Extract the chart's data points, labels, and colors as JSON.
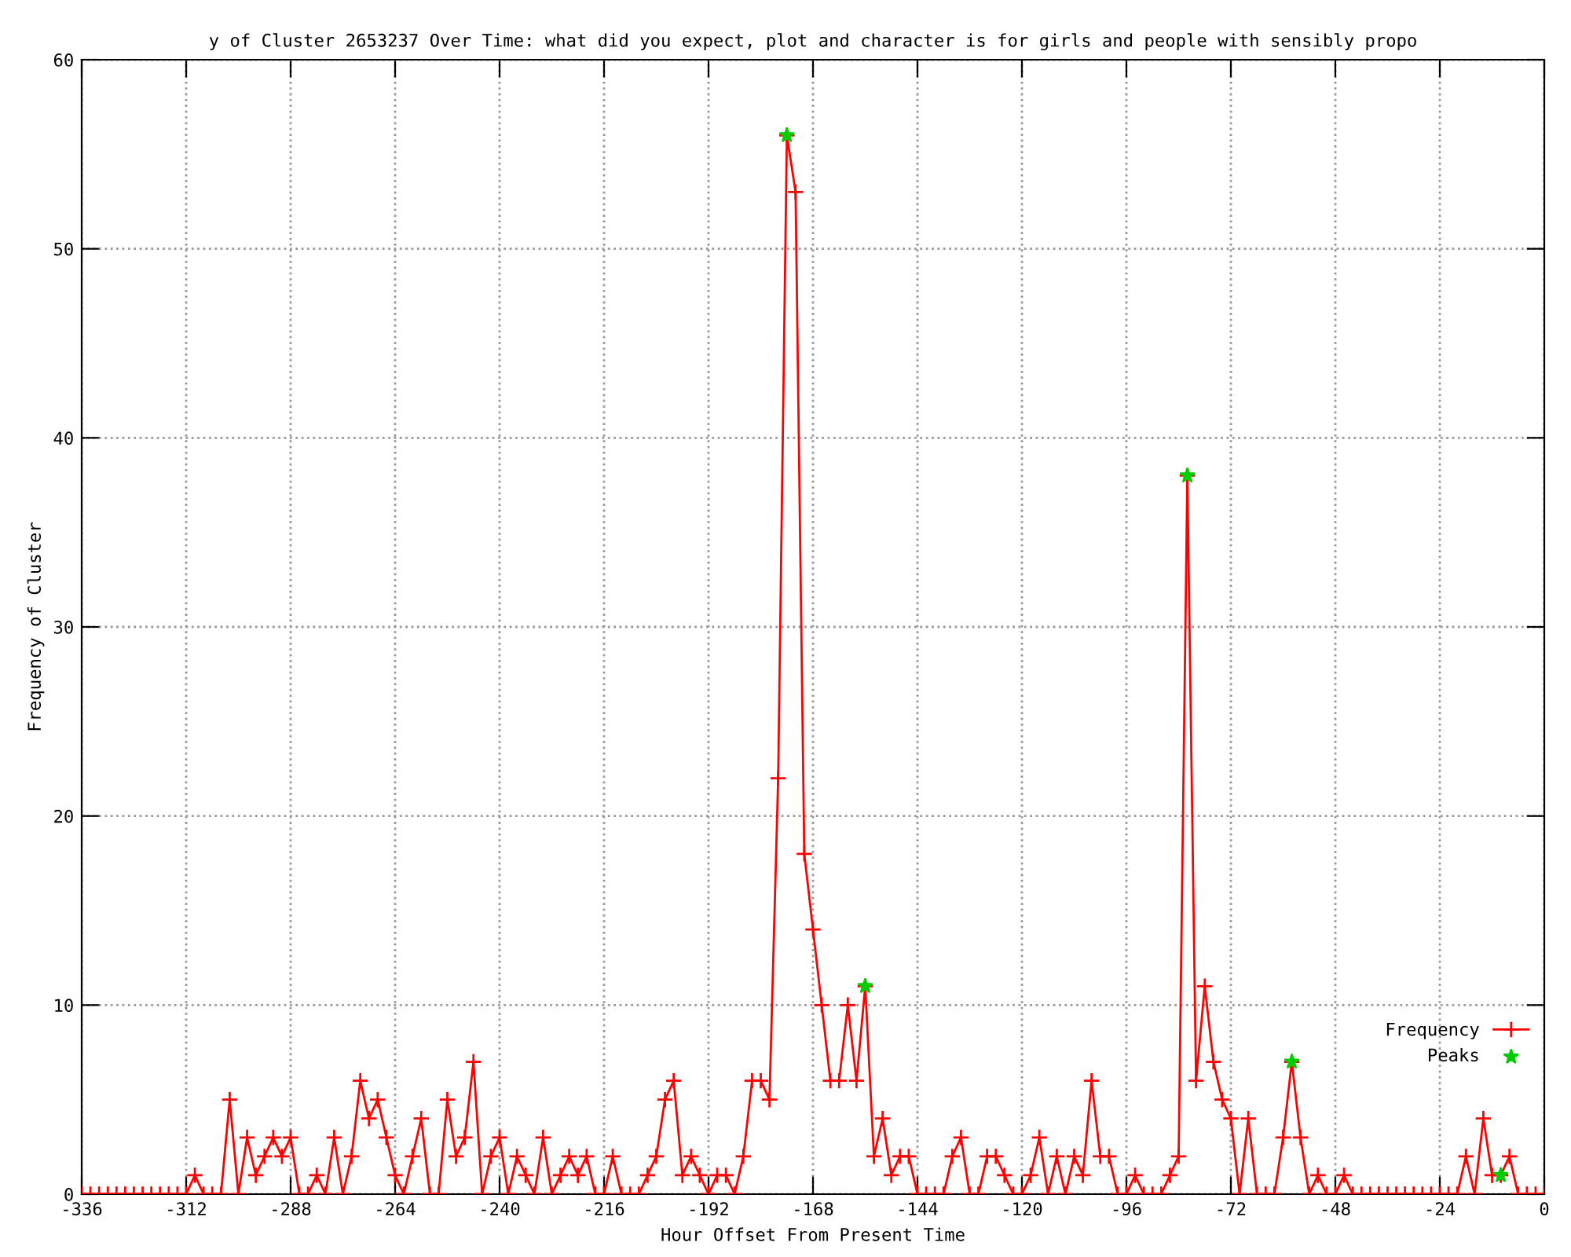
{
  "chart_data": {
    "type": "line",
    "title": "y of Cluster 2653237 Over Time: what did you expect, plot and character is for girls and people with sensibly propo",
    "xlabel": "Hour Offset From Present Time",
    "ylabel": "Frequency of Cluster",
    "x": [
      -336,
      -334,
      -332,
      -330,
      -328,
      -326,
      -324,
      -322,
      -320,
      -318,
      -316,
      -314,
      -312,
      -310,
      -308,
      -306,
      -304,
      -302,
      -300,
      -298,
      -296,
      -294,
      -292,
      -290,
      -288,
      -286,
      -284,
      -282,
      -280,
      -278,
      -276,
      -274,
      -272,
      -270,
      -268,
      -266,
      -264,
      -262,
      -260,
      -258,
      -256,
      -254,
      -252,
      -250,
      -248,
      -246,
      -244,
      -242,
      -240,
      -238,
      -236,
      -234,
      -232,
      -230,
      -228,
      -226,
      -224,
      -222,
      -220,
      -218,
      -216,
      -214,
      -212,
      -210,
      -208,
      -206,
      -204,
      -202,
      -200,
      -198,
      -196,
      -194,
      -192,
      -190,
      -188,
      -186,
      -184,
      -182,
      -180,
      -178,
      -176,
      -174,
      -172,
      -170,
      -168,
      -166,
      -164,
      -162,
      -160,
      -158,
      -156,
      -154,
      -152,
      -150,
      -148,
      -146,
      -144,
      -142,
      -140,
      -138,
      -136,
      -134,
      -132,
      -130,
      -128,
      -126,
      -124,
      -122,
      -120,
      -118,
      -116,
      -114,
      -112,
      -110,
      -108,
      -106,
      -104,
      -102,
      -100,
      -98,
      -96,
      -94,
      -92,
      -90,
      -88,
      -86,
      -84,
      -82,
      -80,
      -78,
      -76,
      -74,
      -72,
      -70,
      -68,
      -66,
      -64,
      -62,
      -60,
      -58,
      -56,
      -54,
      -52,
      -50,
      -48,
      -46,
      -44,
      -42,
      -40,
      -38,
      -36,
      -34,
      -32,
      -30,
      -28,
      -26,
      -24,
      -22,
      -20,
      -18,
      -16,
      -14,
      -12,
      -10,
      -8,
      -6,
      -4,
      -2,
      0
    ],
    "series": [
      {
        "name": "Frequency",
        "color": "#ff0000",
        "marker": "cross",
        "values": [
          0,
          0,
          0,
          0,
          0,
          0,
          0,
          0,
          0,
          0,
          0,
          0,
          0,
          1,
          0,
          0,
          0,
          5,
          0,
          3,
          1,
          2,
          3,
          2,
          3,
          0,
          0,
          1,
          0,
          3,
          0,
          2,
          6,
          4,
          5,
          3,
          1,
          0,
          2,
          4,
          0,
          0,
          5,
          2,
          3,
          7,
          0,
          2,
          3,
          0,
          2,
          1,
          0,
          3,
          0,
          1,
          2,
          1,
          2,
          0,
          0,
          2,
          0,
          0,
          0,
          1,
          2,
          5,
          6,
          1,
          2,
          1,
          0,
          1,
          1,
          0,
          2,
          6,
          6,
          5,
          22,
          56,
          53,
          18,
          14,
          10,
          6,
          6,
          10,
          6,
          11,
          2,
          4,
          1,
          2,
          2,
          0,
          0,
          0,
          0,
          2,
          3,
          0,
          0,
          2,
          2,
          1,
          0,
          0,
          1,
          3,
          0,
          2,
          0,
          2,
          1,
          6,
          2,
          2,
          0,
          0,
          1,
          0,
          0,
          0,
          1,
          2,
          38,
          6,
          11,
          7,
          5,
          4,
          0,
          4,
          0,
          0,
          0,
          3,
          7,
          3,
          0,
          1,
          0,
          0,
          1,
          0,
          0,
          0,
          0,
          0,
          0,
          0,
          0,
          0,
          0,
          0,
          0,
          0,
          2,
          0,
          4,
          1,
          1,
          2,
          0,
          0,
          0,
          0
        ]
      },
      {
        "name": "Peaks",
        "type": "scatter",
        "color": "#00cc00",
        "marker": "star",
        "x": [
          -174,
          -156,
          -82,
          -58,
          -10
        ],
        "values": [
          56,
          11,
          38,
          7,
          1
        ]
      }
    ],
    "xlim": [
      -336,
      0
    ],
    "xticks": [
      -336,
      -312,
      -288,
      -264,
      -240,
      -216,
      -192,
      -168,
      -144,
      -120,
      -96,
      -72,
      -48,
      -24,
      0
    ],
    "ylim": [
      0,
      60
    ],
    "yticks": [
      0,
      10,
      20,
      30,
      40,
      50,
      60
    ],
    "grid": true,
    "legend": "bottom right",
    "line_style": "solid"
  }
}
